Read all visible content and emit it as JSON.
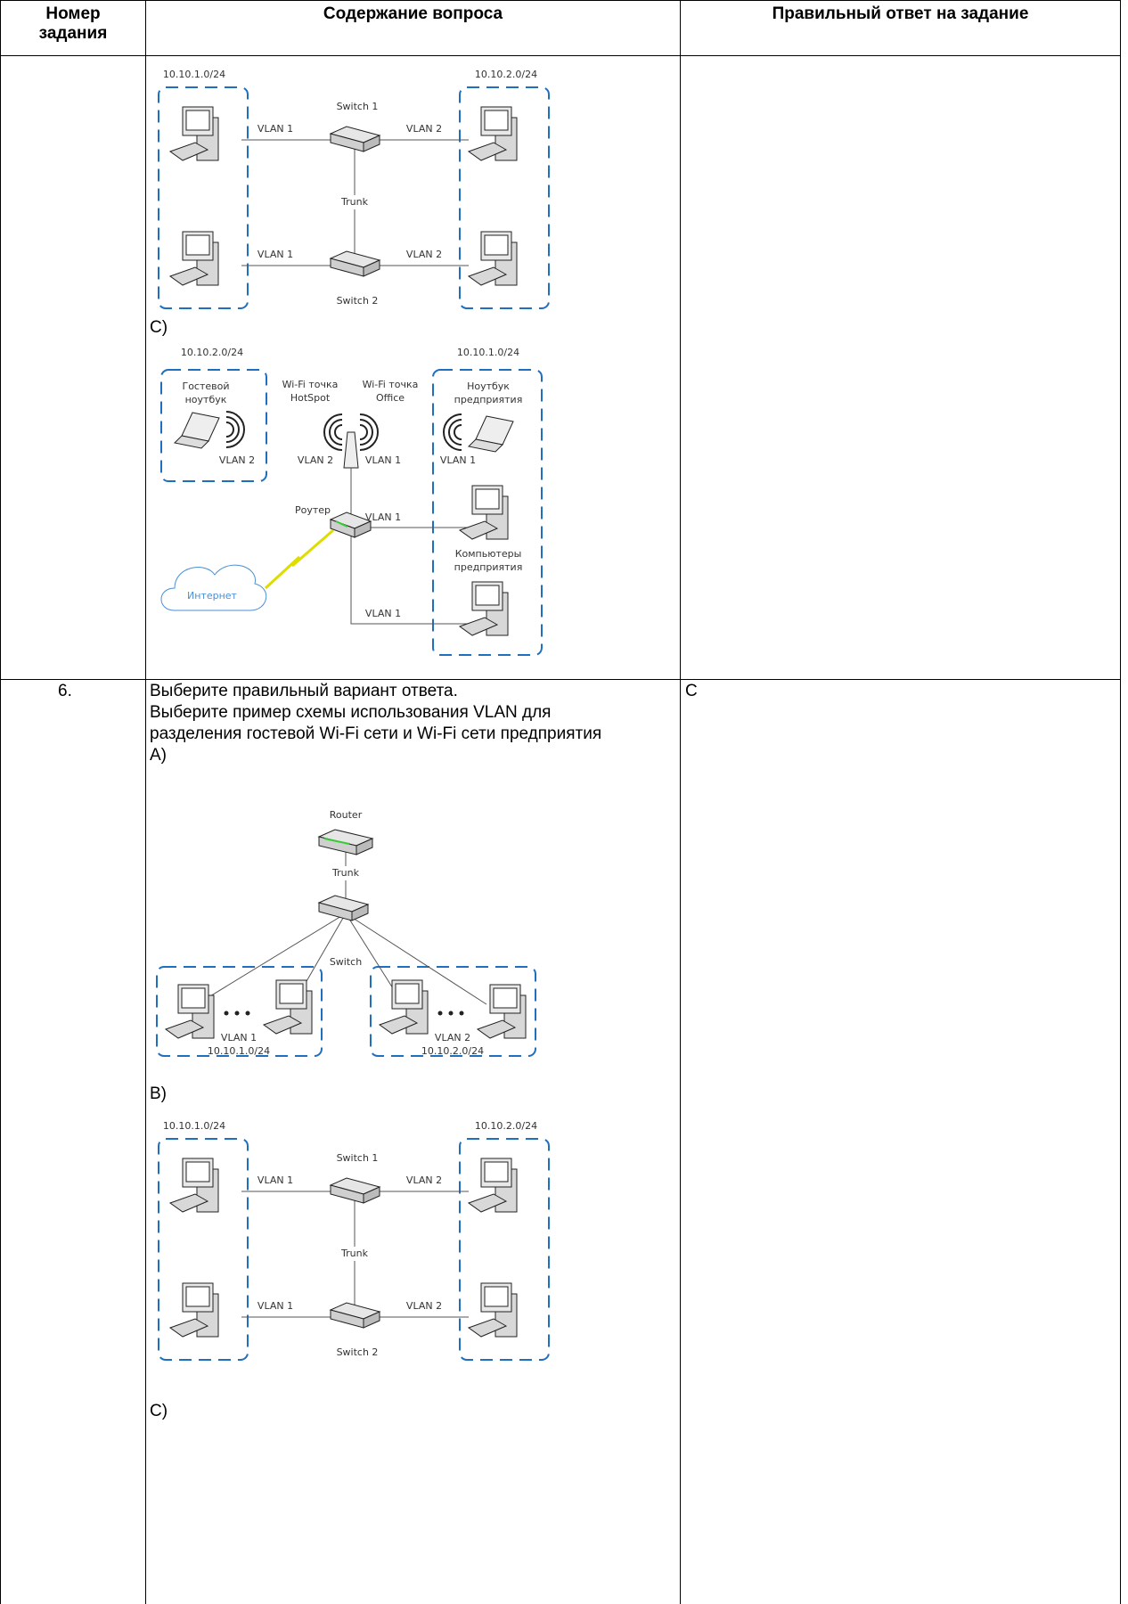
{
  "table": {
    "header": [
      "Номер задания",
      "Содержание вопроса",
      "Правильный ответ на задание"
    ],
    "rows": [
      {
        "content": {
          "diagram_b": {
            "subnet_left": "10.10.1.0/24",
            "subnet_right": "10.10.2.0/24",
            "switch_1": "Switch 1",
            "switch_2": "Switch 2",
            "trunk": "Trunk",
            "vlan_top_left": "VLAN 1",
            "vlan_top_right": "VLAN 2",
            "vlan_bottom_left": "VLAN 1",
            "vlan_bottom_right": "VLAN 2"
          },
          "option_c_label": "C)",
          "diagram_c": {
            "subnet_guest": "10.10.2.0/24",
            "subnet_office": "10.10.1.0/24",
            "guest_laptop": [
              "Гостевой",
              "ноутбук"
            ],
            "guest_vlan": "VLAN 2",
            "hotspot": [
              "Wi-Fi точка",
              "HotSpot"
            ],
            "office_ap": [
              "Wi-Fi точка",
              "Office"
            ],
            "ap_vlan_left": "VLAN 2",
            "ap_vlan_right": "VLAN 1",
            "corp_laptop": [
              "Ноутбук",
              "предприятия"
            ],
            "corp_laptop_vlan": "VLAN 1",
            "router": "Роутер",
            "router_vlan_top": "VLAN 1",
            "corp_computers": [
              "Компьютеры",
              "предприятия"
            ],
            "internet": "Интернет",
            "router_vlan_bottom": "VLAN 1"
          }
        }
      },
      {
        "number": "6.",
        "question": [
          "Выберите правильный вариант ответа.",
          "Выберите пример схемы использования VLAN для разделения гостевой Wi-Fi сети и Wi-Fi сети предприятия"
        ],
        "option_a_label": "A)",
        "diagram_a": {
          "router": "Router",
          "trunk": "Trunk",
          "switch": "Switch",
          "vlan_left": "VLAN 1",
          "subnet_left": "10.10.1.0/24",
          "vlan_right": "VLAN 2",
          "subnet_right": "10.10.2.0/24"
        },
        "option_b_label": "B)",
        "diagram_b": {
          "subnet_left": "10.10.1.0/24",
          "subnet_right": "10.10.2.0/24",
          "switch_1": "Switch 1",
          "switch_2": "Switch 2",
          "trunk": "Trunk",
          "vlan_top_left": "VLAN 1",
          "vlan_top_right": "VLAN 2",
          "vlan_bottom_left": "VLAN 1",
          "vlan_bottom_right": "VLAN 2"
        },
        "option_c_label": "C)",
        "answer": "C"
      }
    ]
  }
}
